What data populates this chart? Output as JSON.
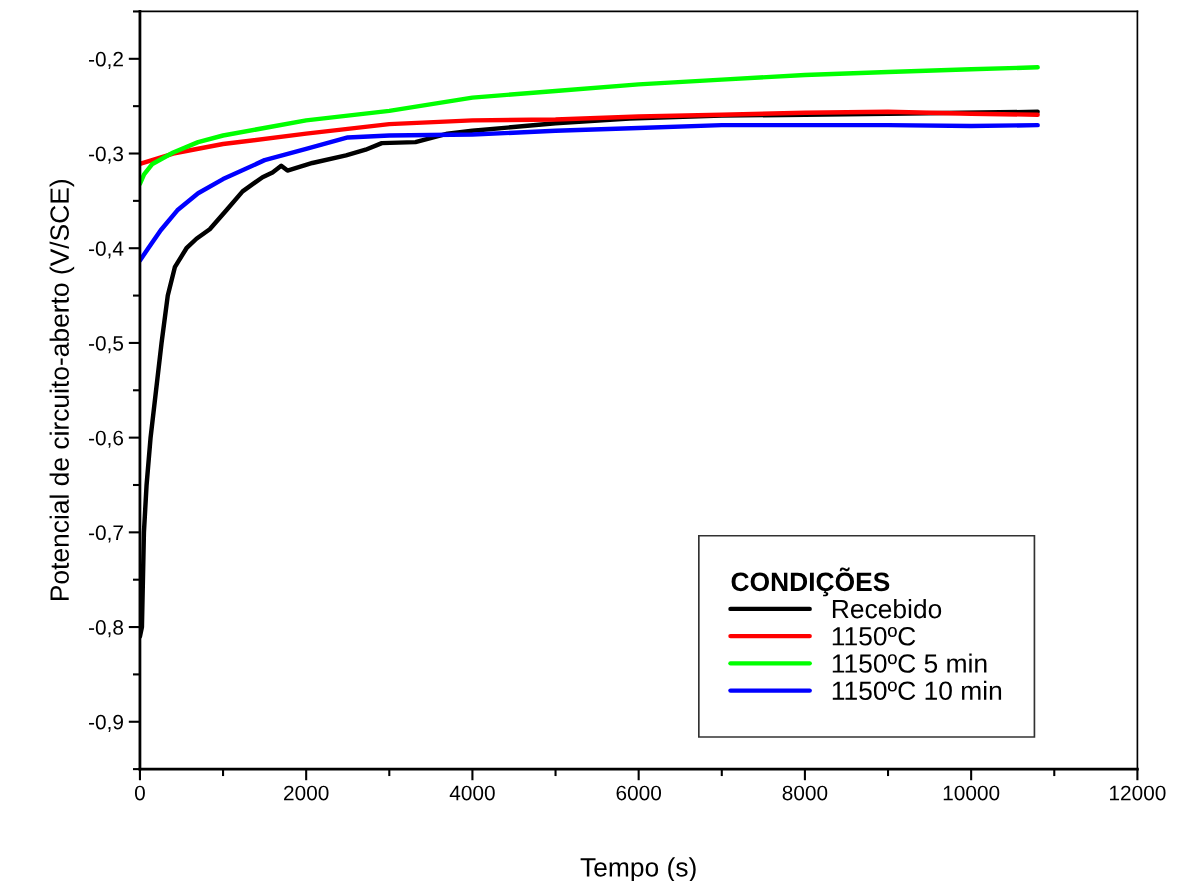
{
  "chart_data": {
    "type": "line",
    "xlabel": "Tempo (s)",
    "ylabel": "Potencial de circuito-aberto (V/SCE)",
    "legend_title": "CONDIÇÕES",
    "xlim": [
      0,
      12000
    ],
    "xticks": [
      0,
      2000,
      4000,
      6000,
      8000,
      10000,
      12000
    ],
    "ylim": [
      -0.95,
      -0.15
    ],
    "yticks": [
      {
        "value": -0.9,
        "label": "-0,9"
      },
      {
        "value": -0.8,
        "label": "-0,8"
      },
      {
        "value": -0.7,
        "label": "-0,7"
      },
      {
        "value": -0.6,
        "label": "-0,6"
      },
      {
        "value": -0.5,
        "label": "-0,5"
      },
      {
        "value": -0.4,
        "label": "-0,4"
      },
      {
        "value": -0.3,
        "label": "-0,3"
      },
      {
        "value": -0.2,
        "label": "-0,2"
      }
    ],
    "grid": false,
    "legend": "bottom right",
    "marker": "none",
    "line_style": "solid",
    "series": [
      {
        "name": "Recebido",
        "color": "#000000",
        "x": [
          0,
          24,
          48,
          80,
          128,
          260,
          335,
          420,
          560,
          680,
          840,
          1040,
          1235,
          1475,
          1595,
          1700,
          1775,
          2075,
          2480,
          2715,
          2910,
          3315,
          3700,
          4000,
          5000,
          5890,
          7000,
          8000,
          9000,
          10800
        ],
        "values": [
          -0.81,
          -0.8,
          -0.7,
          -0.65,
          -0.6,
          -0.5,
          -0.45,
          -0.42,
          -0.4,
          -0.39,
          -0.38,
          -0.36,
          -0.34,
          -0.325,
          -0.32,
          -0.313,
          -0.318,
          -0.31,
          -0.302,
          -0.296,
          -0.289,
          -0.288,
          -0.279,
          -0.276,
          -0.268,
          -0.263,
          -0.26,
          -0.259,
          -0.258,
          -0.256
        ]
      },
      {
        "name": "1150ºC",
        "color": "#ff0000",
        "x": [
          0,
          400,
          1000,
          2000,
          3000,
          4000,
          5000,
          6000,
          7000,
          8000,
          9000,
          10000,
          10800
        ],
        "values": [
          -0.311,
          -0.3,
          -0.29,
          -0.279,
          -0.269,
          -0.265,
          -0.264,
          -0.261,
          -0.259,
          -0.257,
          -0.256,
          -0.258,
          -0.259
        ]
      },
      {
        "name": "1150ºC 5 min",
        "color": "#00ff00",
        "x": [
          0,
          50,
          150,
          400,
          700,
          1000,
          2000,
          3000,
          4000,
          5000,
          6000,
          7000,
          8000,
          9000,
          10000,
          10800
        ],
        "values": [
          -0.332,
          -0.322,
          -0.311,
          -0.299,
          -0.288,
          -0.281,
          -0.265,
          -0.255,
          -0.241,
          -0.234,
          -0.227,
          -0.222,
          -0.217,
          -0.214,
          -0.211,
          -0.209
        ]
      },
      {
        "name": "1150ºC 10 min",
        "color": "#0000ff",
        "x": [
          0,
          100,
          250,
          450,
          700,
          1000,
          1500,
          2000,
          2500,
          3000,
          4000,
          5000,
          6000,
          7000,
          8000,
          9000,
          10000,
          10800
        ],
        "values": [
          -0.413,
          -0.4,
          -0.381,
          -0.36,
          -0.342,
          -0.327,
          -0.307,
          -0.295,
          -0.283,
          -0.281,
          -0.28,
          -0.276,
          -0.273,
          -0.27,
          -0.27,
          -0.27,
          -0.271,
          -0.27
        ]
      }
    ]
  }
}
